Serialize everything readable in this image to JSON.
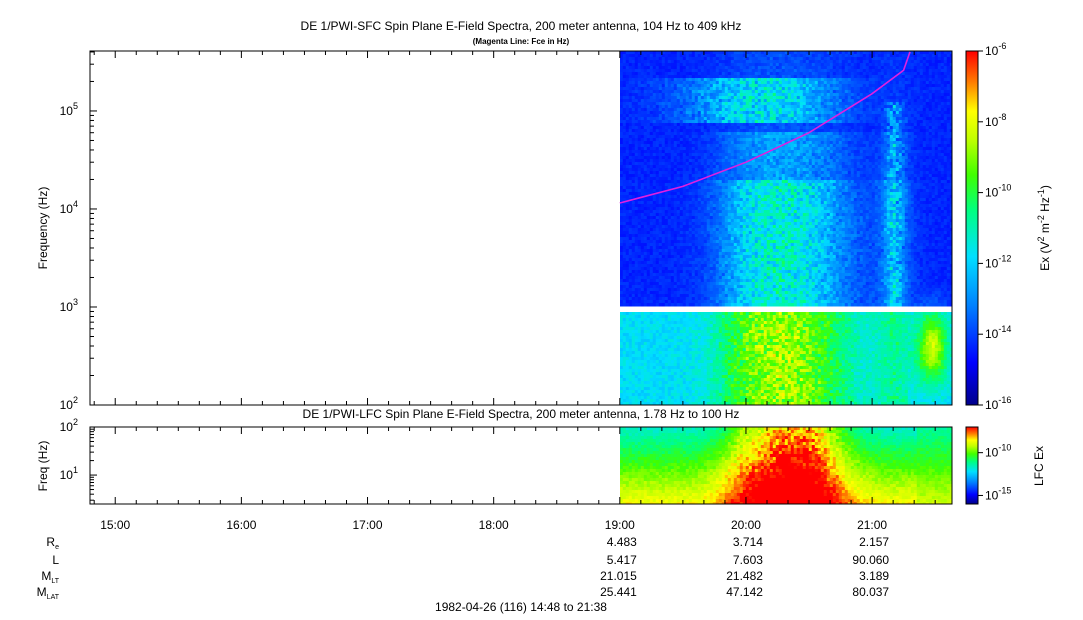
{
  "chart_data": [
    {
      "type": "heatmap",
      "title": "DE 1/PWI-SFC  Spin Plane E-Field Spectra, 200 meter antenna, 104 Hz to 409 kHz",
      "subtitle": "(Magenta Line: Fce in Hz)",
      "ylabel": "Frequency (Hz)",
      "yscale": "log",
      "ylim": [
        100,
        409000
      ],
      "ytick_labels": [
        {
          "base": "10",
          "exp": "5",
          "value": 100000
        },
        {
          "base": "10",
          "exp": "4",
          "value": 10000
        },
        {
          "base": "10",
          "exp": "3",
          "value": 1000
        },
        {
          "base": "10",
          "exp": "2",
          "value": 100
        }
      ],
      "data_start_time": "19:00",
      "data_end_time": "21:38",
      "data_gap_hz": [
        900,
        1000
      ],
      "colorbar": {
        "label_parts": [
          "Ex (V",
          "2",
          " m",
          "-2",
          " Hz",
          "-1",
          ")"
        ],
        "scale": "log",
        "range": [
          1e-16,
          1e-06
        ],
        "tick_labels": [
          {
            "base": "10",
            "exp": "-6",
            "value": 1e-06
          },
          {
            "base": "10",
            "exp": "-8",
            "value": 1e-08
          },
          {
            "base": "10",
            "exp": "-10",
            "value": 1e-10
          },
          {
            "base": "10",
            "exp": "-12",
            "value": 1e-12
          },
          {
            "base": "10",
            "exp": "-14",
            "value": 1e-14
          },
          {
            "base": "10",
            "exp": "-16",
            "value": 1e-16
          }
        ]
      },
      "fce_line": {
        "color": "#e020e0",
        "points": [
          {
            "time": "19:00",
            "hz": 11500
          },
          {
            "time": "19:30",
            "hz": 17000
          },
          {
            "time": "20:00",
            "hz": 30000
          },
          {
            "time": "20:30",
            "hz": 60000
          },
          {
            "time": "21:00",
            "hz": 150000
          },
          {
            "time": "21:15",
            "hz": 260000
          },
          {
            "time": "21:18",
            "hz": 400000
          }
        ]
      }
    },
    {
      "type": "heatmap",
      "title": "DE 1/PWI-LFC  Spin Plane E-Field Spectra, 200 meter antenna, 1.78 Hz to 100 Hz",
      "ylabel": "Freq (Hz)",
      "yscale": "log",
      "ylim": [
        2.5,
        100
      ],
      "ytick_labels": [
        {
          "base": "10",
          "exp": "2",
          "value": 100
        },
        {
          "base": "10",
          "exp": "1",
          "value": 10
        }
      ],
      "data_start_time": "19:00",
      "data_end_time": "21:38",
      "colorbar": {
        "label": "LFC Ex",
        "scale": "log",
        "range": [
          1e-16,
          1e-07
        ],
        "tick_labels": [
          {
            "base": "10",
            "exp": "-10",
            "value": 1e-10
          },
          {
            "base": "10",
            "exp": "-15",
            "value": 1e-15
          }
        ]
      }
    }
  ],
  "time_axis": {
    "ticks": [
      "15:00",
      "16:00",
      "17:00",
      "18:00",
      "19:00",
      "20:00",
      "21:00"
    ],
    "start": "14:48",
    "end": "21:38"
  },
  "ephemeris": {
    "rows": [
      {
        "label_main": "R",
        "label_sub": "e",
        "values": [
          "4.483",
          "3.714",
          "2.157"
        ]
      },
      {
        "label_main": "L",
        "label_sub": "",
        "values": [
          "5.417",
          "7.603",
          "90.060"
        ]
      },
      {
        "label_main": "M",
        "label_sub": "LT",
        "values": [
          "21.015",
          "21.482",
          "3.189"
        ]
      },
      {
        "label_main": "M",
        "label_sub": "LAT",
        "values": [
          "25.441",
          "47.142",
          "80.037"
        ]
      }
    ],
    "value_times": [
      "19:00",
      "20:00",
      "21:00"
    ]
  },
  "footer": "1982-04-26 (116) 14:48 to 21:38"
}
